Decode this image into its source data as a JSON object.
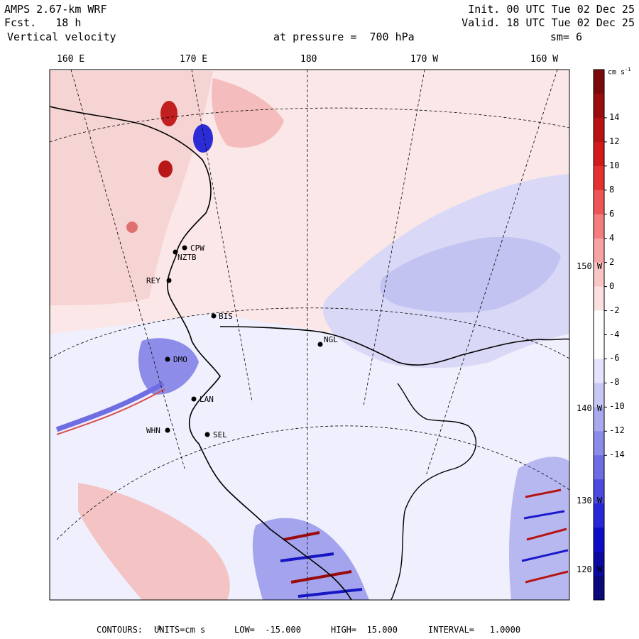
{
  "header": {
    "model": "AMPS 2.67-km WRF",
    "fcst": "Fcst.   18 h",
    "field": "Vertical velocity",
    "level": "at pressure =  700 hPa",
    "init": "Init. 00 UTC Tue 02 Dec 25",
    "valid": "Valid. 18 UTC Tue 02 Dec 25",
    "smooth": "sm= 6"
  },
  "longitude_labels": [
    "160 E",
    "170 E",
    "180",
    "170 W",
    "160 W"
  ],
  "latitude_labels": [
    "150 W",
    "140 W",
    "130 W",
    "120 W"
  ],
  "stations": [
    "CPW",
    "NZTB",
    "REY",
    "BIS",
    "NGL",
    "DMO",
    "LAN",
    "WHN",
    "SEL"
  ],
  "colorbar": {
    "units": "cm s",
    "units_exp": "-1",
    "ticks": [
      "14",
      "12",
      "10",
      "8",
      "6",
      "4",
      "2",
      "0",
      "-2",
      "-4",
      "-6",
      "-8",
      "-10",
      "-12",
      "-14"
    ],
    "colors": [
      "#7a0a0a",
      "#990d0d",
      "#b81212",
      "#d21a1a",
      "#e53030",
      "#ee5656",
      "#f47e7e",
      "#f7a3a3",
      "#f9c5c5",
      "#fbe0e0",
      "#ffffff",
      "#ffffff",
      "#e3e3fb",
      "#c7c7f6",
      "#a9a9f0",
      "#8b8be9",
      "#6c6ce3",
      "#4a4ade",
      "#2727d8",
      "#0d0dc7",
      "#0a0aa0",
      "#09097a"
    ]
  },
  "footer": {
    "contours_label": "CONTOURS:",
    "units": "UNITS=cm s",
    "units_exp": "-1",
    "low": "LOW=  -15.000",
    "high": "HIGH=  15.000",
    "interval": "INTERVAL=   1.0000"
  }
}
